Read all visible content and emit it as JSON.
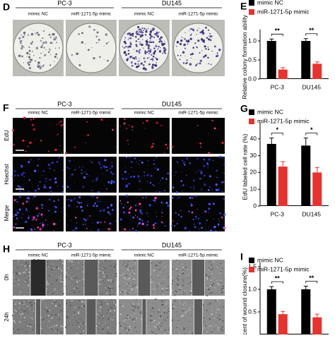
{
  "figure": {
    "D": {
      "label": "D",
      "groups": [
        "PC-3",
        "DU145"
      ],
      "columns": [
        "mimic NC",
        "miR-1271-5p mimic",
        "mimic NC",
        "miR-1271-5p mimic"
      ]
    },
    "F": {
      "label": "F",
      "groups": [
        "PC-3",
        "DU145"
      ],
      "columns": [
        "mimic NC",
        "miR-1271-5p mimic",
        "mimic NC",
        "miR-1271-5p mimic"
      ],
      "rows": [
        "EdU",
        "Hoechst",
        "Merge"
      ]
    },
    "H": {
      "label": "H",
      "groups": [
        "PC-3",
        "DU145"
      ],
      "columns": [
        "mimic NC",
        "miR-1271-5p mimic",
        "mimic NC",
        "miR-1271-5p mimic"
      ],
      "rows": [
        "0h",
        "24h"
      ]
    }
  },
  "chart_data": [
    {
      "type": "bar",
      "panel": "E",
      "ylabel": "Relative colony formation ability",
      "categories": [
        "PC-3",
        "DU145"
      ],
      "series": [
        {
          "name": "mimic NC",
          "color": "#000000",
          "values": [
            1.0,
            1.0
          ],
          "errors": [
            0.05,
            0.06
          ]
        },
        {
          "name": "miR-1271-5p mimic",
          "color": "#e8322e",
          "values": [
            0.25,
            0.4
          ],
          "errors": [
            0.05,
            0.05
          ]
        }
      ],
      "significance": [
        "**",
        "**"
      ],
      "ylim": [
        0,
        1.3
      ],
      "yticks": [
        {
          "value": 0,
          "label": "0.0"
        },
        {
          "value": 0.5,
          "label": "0.5"
        },
        {
          "value": 1,
          "label": "1.0"
        }
      ]
    },
    {
      "type": "bar",
      "panel": "G",
      "ylabel": "EdU labeled cell rate (%)",
      "categories": [
        "PC-3",
        "DU145"
      ],
      "series": [
        {
          "name": "mimic NC",
          "color": "#000000",
          "values": [
            37,
            36
          ],
          "errors": [
            3.5,
            4.5
          ]
        },
        {
          "name": "miR-1271-5p mimic",
          "color": "#e8322e",
          "values": [
            23.5,
            20
          ],
          "errors": [
            3,
            3
          ]
        }
      ],
      "significance": [
        "*",
        "*"
      ],
      "ylim": [
        0,
        50
      ],
      "yticks": [
        0,
        10,
        20,
        30,
        40
      ]
    },
    {
      "type": "bar",
      "panel": "I",
      "ylabel": "cent of wound closure(%)",
      "series": [
        {
          "name": "mimic NC",
          "color": "#000000",
          "values": [
            1.0,
            1.0
          ],
          "errors": [
            0.06,
            0.07
          ]
        },
        {
          "name": "miR-1271-5p mimic",
          "color": "#e8322e",
          "values": [
            0.45,
            0.38
          ],
          "errors": [
            0.06,
            0.07
          ]
        }
      ],
      "significance": [
        "**",
        "**"
      ],
      "ylim": [
        0,
        1.6
      ],
      "yticks": [
        {
          "value": 0.5,
          "label": "0.5"
        },
        {
          "value": 1,
          "label": "1.0"
        },
        {
          "value": 1.5,
          "label": "1.5"
        }
      ]
    }
  ]
}
